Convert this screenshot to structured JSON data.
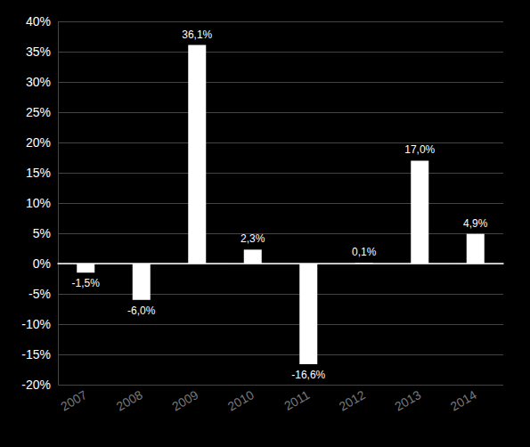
{
  "chart_data": {
    "type": "bar",
    "categories": [
      "2007",
      "2008",
      "2009",
      "2010",
      "2011",
      "2012",
      "2013",
      "2014"
    ],
    "values": [
      -1.5,
      -6.0,
      36.1,
      2.3,
      -16.6,
      0.1,
      17.0,
      4.9
    ],
    "value_labels": [
      "-1,5%",
      "-6,0%",
      "36,1%",
      "2,3%",
      "-16,6%",
      "0,1%",
      "17,0%",
      "4,9%"
    ],
    "color": "#ffffff",
    "ylim": [
      -20,
      40
    ],
    "yticks": [
      {
        "value": -20,
        "label": "-20%"
      },
      {
        "value": -15,
        "label": "-15%"
      },
      {
        "value": -10,
        "label": "-10%"
      },
      {
        "value": -5,
        "label": "-5%"
      },
      {
        "value": 0,
        "label": "0%"
      },
      {
        "value": 5,
        "label": "5%"
      },
      {
        "value": 10,
        "label": "10%"
      },
      {
        "value": 15,
        "label": "15%"
      },
      {
        "value": 20,
        "label": "20%"
      },
      {
        "value": 25,
        "label": "25%"
      },
      {
        "value": 30,
        "label": "30%"
      },
      {
        "value": 35,
        "label": "35%"
      },
      {
        "value": 40,
        "label": "40%"
      }
    ],
    "grid": true,
    "data_labels": true
  }
}
